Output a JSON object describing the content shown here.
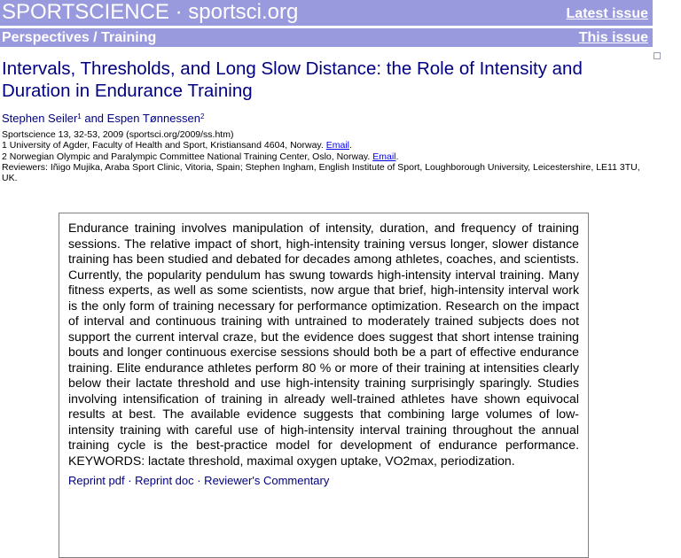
{
  "header": {
    "site_title": "SPORTSCIENCE · sportsci.org",
    "latest_issue": "Latest issue",
    "section": "Perspectives / Training",
    "this_issue": "This issue"
  },
  "article": {
    "title": "Intervals, Thresholds, and Long Slow Distance:  the Role of Intensity and Duration in Endurance Training",
    "author1": "Stephen Seiler",
    "author1_sup": "1",
    "author_join": " and ",
    "author2": "Espen Tønnessen",
    "author2_sup": "2",
    "citation": "Sportscience 13, 32-53, 2009 (sportsci.org/2009/ss.htm)",
    "affiliation1": "1 University of Agder, Faculty of Health and Sport, Kristiansand 4604, Norway. ",
    "affiliation2": "2 Norwegian Olympic and Paralympic Committee National Training Center, Oslo,  Norway. ",
    "email_label": "Email",
    "period": ".",
    "reviewers": "Reviewers: Iñigo Mujika, Araba Sport Clinic, Vitoria, Spain; Stephen Ingham, English Institute of Sport, Loughborough University, Leicestershire, LE11 3TU, UK."
  },
  "abstract": {
    "text": "Endurance training involves manipulation of intensity, duration, and frequency of training sessions.  The relative impact of short, high-intensity training versus longer, slower distance training has been studied and debated for decades among athletes, coaches, and scientists.  Currently, the popularity pendulum has swung towards high-intensity interval training.  Many fitness experts, as well as some scientists, now argue that brief, high-intensity interval work is the only form of training necessary for performance optimization.  Research on the impact of interval and continuous training with untrained to moderately trained subjects does not support the current interval craze, but the evidence does suggest that short intense training bouts and longer continuous exercise sessions should both be a part of effective endurance training.  Elite endurance athletes perform 80 % or more of their training at intensities clearly below their lactate threshold and use high-intensity training surprisingly sparingly.  Studies involving intensification of training in already well-trained athletes have shown equivocal results at best.  The available evidence suggests that combining large volumes of low-intensity training with careful use of high-intensity interval training throughout the annual training cycle is the best-practice model for development of endurance performance. KEYWORDS: lactate threshold, maximal oxygen uptake, VO2max, periodization.",
    "cutoff_line": "Reprint pdf · Reprint doc · Reviewer's Commentary"
  }
}
